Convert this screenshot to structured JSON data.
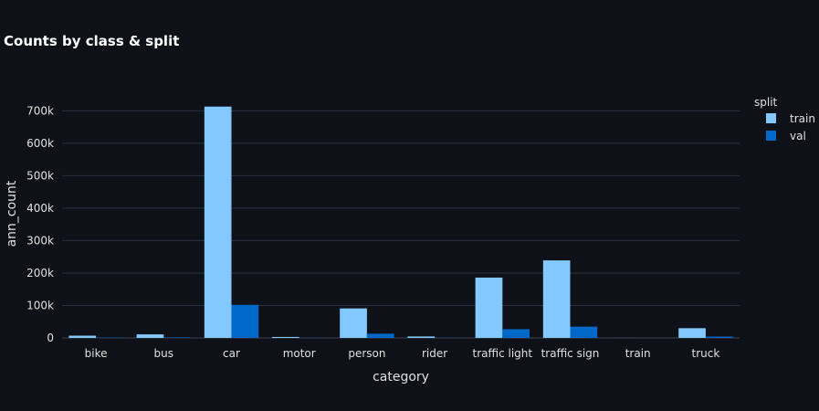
{
  "chart_data": {
    "type": "bar",
    "title": "Counts by class & split",
    "xlabel": "category",
    "ylabel": "ann_count",
    "categories": [
      "bike",
      "bus",
      "car",
      "motor",
      "person",
      "rider",
      "traffic light",
      "traffic sign",
      "train",
      "truck"
    ],
    "series": [
      {
        "name": "train",
        "color": "#83c9ff",
        "values": [
          7000,
          11000,
          713000,
          3000,
          91000,
          4500,
          186000,
          239000,
          136,
          30000
        ]
      },
      {
        "name": "val",
        "color": "#0068c9",
        "values": [
          1000,
          1600,
          102000,
          450,
          13000,
          650,
          27000,
          35000,
          15,
          4200
        ]
      }
    ],
    "ylim": [
      0,
      760000
    ],
    "yticks": [
      0,
      100000,
      200000,
      300000,
      400000,
      500000,
      600000,
      700000
    ],
    "ytick_labels": [
      "0",
      "100k",
      "200k",
      "300k",
      "400k",
      "500k",
      "600k",
      "700k"
    ],
    "legend_title": "split",
    "legend_position": "top-right",
    "grid": true
  }
}
